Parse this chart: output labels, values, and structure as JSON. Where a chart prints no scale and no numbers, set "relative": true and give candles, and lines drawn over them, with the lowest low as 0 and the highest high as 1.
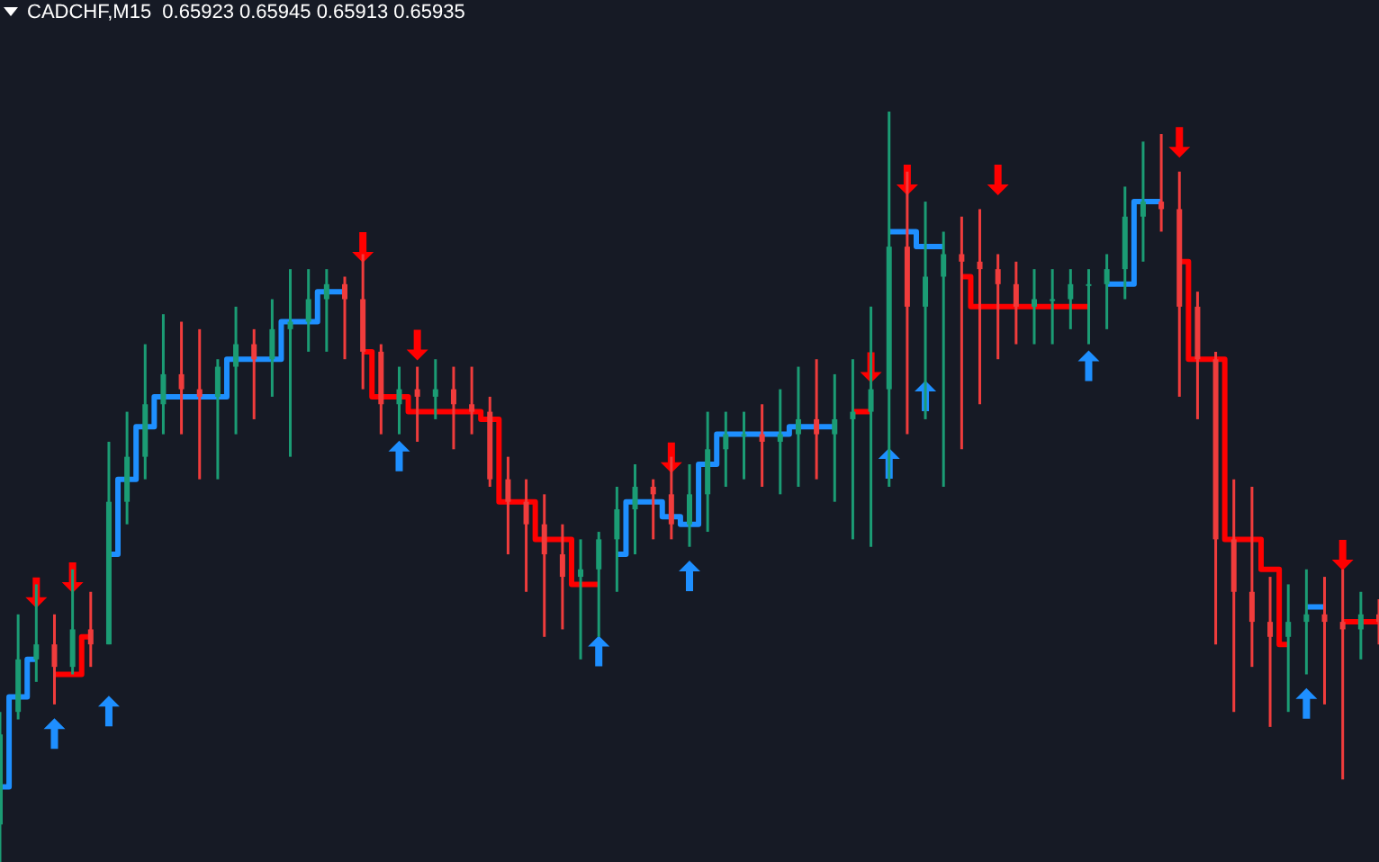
{
  "chart_data": {
    "type": "candlestick",
    "title": "CADCHF,M15  0.65923 0.65945 0.65913 0.65935",
    "relative": true,
    "legend": false,
    "grid": false,
    "tick_labels": false,
    "categories": [
      null,
      null,
      null,
      null,
      null,
      null,
      null,
      null,
      null,
      null,
      null,
      null,
      null,
      null,
      null,
      null,
      null,
      null,
      null,
      null,
      null,
      null,
      null,
      null,
      null,
      null,
      null,
      null,
      null,
      null,
      null,
      null,
      null,
      null,
      null,
      null,
      null,
      null,
      null,
      null,
      null,
      null,
      null,
      null,
      null,
      null,
      null,
      null,
      null,
      null,
      null,
      null,
      null,
      null,
      null,
      null,
      null,
      null,
      null,
      null,
      null,
      null,
      null,
      null,
      null,
      null,
      null,
      null,
      null,
      null,
      null,
      null,
      null,
      null,
      null,
      null,
      null
    ],
    "series": [
      {
        "type": "candlestick",
        "ohlc": [
          [
            0.05,
            0.2,
            0,
            0.17
          ],
          [
            0.2,
            0.33,
            0.19,
            0.27
          ],
          [
            0.27,
            0.37,
            0.24,
            0.29
          ],
          [
            0.29,
            0.33,
            0.21,
            0.26
          ],
          [
            0.26,
            0.39,
            0.25,
            0.31
          ],
          [
            0.31,
            0.36,
            0.26,
            0.29
          ],
          [
            0.29,
            0.56,
            0.29,
            0.48
          ],
          [
            0.48,
            0.6,
            0.45,
            0.54
          ],
          [
            0.54,
            0.69,
            0.51,
            0.61
          ],
          [
            0.61,
            0.73,
            0.57,
            0.65
          ],
          [
            0.65,
            0.72,
            0.57,
            0.63
          ],
          [
            0.63,
            0.71,
            0.51,
            0.62
          ],
          [
            0.62,
            0.67,
            0.51,
            0.66
          ],
          [
            0.66,
            0.74,
            0.57,
            0.69
          ],
          [
            0.69,
            0.71,
            0.59,
            0.67
          ],
          [
            0.67,
            0.75,
            0.62,
            0.71
          ],
          [
            0.71,
            0.79,
            0.54,
            0.72
          ],
          [
            0.72,
            0.79,
            0.68,
            0.75
          ],
          [
            0.75,
            0.79,
            0.68,
            0.77
          ],
          [
            0.77,
            0.78,
            0.67,
            0.75
          ],
          [
            0.75,
            0.81,
            0.63,
            0.68
          ],
          [
            0.68,
            0.69,
            0.57,
            0.61
          ],
          [
            0.61,
            0.66,
            0.57,
            0.63
          ],
          [
            0.63,
            0.66,
            0.56,
            0.62
          ],
          [
            0.62,
            0.67,
            0.59,
            0.63
          ],
          [
            0.63,
            0.66,
            0.55,
            0.61
          ],
          [
            0.61,
            0.66,
            0.57,
            0.6
          ],
          [
            0.6,
            0.62,
            0.5,
            0.51
          ],
          [
            0.51,
            0.54,
            0.41,
            0.48
          ],
          [
            0.48,
            0.51,
            0.36,
            0.45
          ],
          [
            0.45,
            0.49,
            0.3,
            0.41
          ],
          [
            0.41,
            0.45,
            0.31,
            0.38
          ],
          [
            0.38,
            0.43,
            0.27,
            0.39
          ],
          [
            0.39,
            0.44,
            0.3,
            0.43
          ],
          [
            0.43,
            0.5,
            0.36,
            0.47
          ],
          [
            0.47,
            0.53,
            0.41,
            0.5
          ],
          [
            0.5,
            0.51,
            0.43,
            0.49
          ],
          [
            0.49,
            0.54,
            0.43,
            0.45
          ],
          [
            0.45,
            0.53,
            0.42,
            0.49
          ],
          [
            0.49,
            0.6,
            0.44,
            0.55
          ],
          [
            0.55,
            0.6,
            0.5,
            0.57
          ],
          [
            0.57,
            0.6,
            0.51,
            0.57
          ],
          [
            0.57,
            0.61,
            0.5,
            0.56
          ],
          [
            0.56,
            0.63,
            0.49,
            0.57
          ],
          [
            0.57,
            0.66,
            0.5,
            0.59
          ],
          [
            0.59,
            0.67,
            0.51,
            0.57
          ],
          [
            0.57,
            0.65,
            0.48,
            0.59
          ],
          [
            0.59,
            0.67,
            0.43,
            0.6
          ],
          [
            0.6,
            0.74,
            0.42,
            0.63
          ],
          [
            0.63,
            1,
            0.5,
            0.82
          ],
          [
            0.82,
            0.92,
            0.57,
            0.74
          ],
          [
            0.74,
            0.88,
            0.59,
            0.78
          ],
          [
            0.78,
            0.84,
            0.5,
            0.81
          ],
          [
            0.81,
            0.86,
            0.55,
            0.8
          ],
          [
            0.8,
            0.87,
            0.61,
            0.79
          ],
          [
            0.79,
            0.81,
            0.67,
            0.77
          ],
          [
            0.77,
            0.8,
            0.69,
            0.74
          ],
          [
            0.74,
            0.79,
            0.69,
            0.75
          ],
          [
            0.75,
            0.79,
            0.69,
            0.75
          ],
          [
            0.75,
            0.79,
            0.71,
            0.77
          ],
          [
            0.77,
            0.79,
            0.69,
            0.77
          ],
          [
            0.77,
            0.81,
            0.71,
            0.79
          ],
          [
            0.79,
            0.9,
            0.75,
            0.86
          ],
          [
            0.86,
            0.96,
            0.8,
            0.88
          ],
          [
            0.88,
            0.97,
            0.84,
            0.87
          ],
          [
            0.87,
            0.92,
            0.62,
            0.74
          ],
          [
            0.74,
            0.76,
            0.59,
            0.67
          ],
          [
            0.67,
            0.68,
            0.29,
            0.43
          ],
          [
            0.43,
            0.51,
            0.2,
            0.36
          ],
          [
            0.36,
            0.5,
            0.26,
            0.32
          ],
          [
            0.32,
            0.38,
            0.18,
            0.3
          ],
          [
            0.3,
            0.37,
            0.2,
            0.32
          ],
          [
            0.32,
            0.39,
            0.25,
            0.33
          ],
          [
            0.33,
            0.38,
            0.21,
            0.32
          ],
          [
            0.32,
            0.39,
            0.11,
            0.31
          ],
          [
            0.31,
            0.36,
            0.27,
            0.33
          ],
          [
            0.33,
            0.35,
            0.29,
            0.32
          ]
        ],
        "colors": [
          "#1b9c74",
          "#1b9c74",
          "#1b9c74",
          "#f03c3c",
          "#1b9c74",
          "#f03c3c",
          "#1b9c74",
          "#1b9c74",
          "#1b9c74",
          "#1b9c74",
          "#f03c3c",
          "#f03c3c",
          "#1b9c74",
          "#1b9c74",
          "#f03c3c",
          "#1b9c74",
          "#1b9c74",
          "#1b9c74",
          "#1b9c74",
          "#f03c3c",
          "#f03c3c",
          "#f03c3c",
          "#1b9c74",
          "#f03c3c",
          "#1b9c74",
          "#f03c3c",
          "#f03c3c",
          "#f03c3c",
          "#f03c3c",
          "#f03c3c",
          "#f03c3c",
          "#f03c3c",
          "#1b9c74",
          "#1b9c74",
          "#1b9c74",
          "#1b9c74",
          "#f03c3c",
          "#f03c3c",
          "#1b9c74",
          "#1b9c74",
          "#1b9c74",
          "#1b9c74",
          "#f03c3c",
          "#1b9c74",
          "#1b9c74",
          "#f03c3c",
          "#1b9c74",
          "#1b9c74",
          "#1b9c74",
          "#1b9c74",
          "#f03c3c",
          "#1b9c74",
          "#1b9c74",
          "#f03c3c",
          "#f03c3c",
          "#f03c3c",
          "#f03c3c",
          "#1b9c74",
          "#1b9c74",
          "#1b9c74",
          "#1b9c74",
          "#1b9c74",
          "#1b9c74",
          "#1b9c74",
          "#f03c3c",
          "#f03c3c",
          "#f03c3c",
          "#f03c3c",
          "#f03c3c",
          "#f03c3c",
          "#f03c3c",
          "#1b9c74",
          "#1b9c74",
          "#f03c3c",
          "#f03c3c",
          "#1b9c74",
          "#f03c3c"
        ]
      },
      {
        "type": "step",
        "color": "#1e8fff",
        "values": [
          0.1,
          0.22,
          0.27,
          null,
          null,
          null,
          0.41,
          0.51,
          0.58,
          0.62,
          0.62,
          0.62,
          0.62,
          0.67,
          0.67,
          0.67,
          0.72,
          0.72,
          0.76,
          0.76,
          null,
          null,
          null,
          null,
          null,
          null,
          null,
          null,
          null,
          null,
          null,
          null,
          null,
          null,
          0.41,
          0.48,
          0.48,
          0.46,
          0.45,
          0.53,
          0.57,
          0.57,
          0.57,
          0.57,
          0.58,
          0.58,
          0.58,
          null,
          null,
          0.84,
          0.84,
          0.82,
          0.82,
          null,
          null,
          null,
          null,
          null,
          null,
          null,
          null,
          0.77,
          0.77,
          0.88,
          0.88,
          null,
          null,
          null,
          null,
          null,
          null,
          null,
          0.34,
          0.34,
          null,
          null,
          null
        ]
      },
      {
        "type": "step",
        "color": "#ff0000",
        "values": [
          null,
          null,
          null,
          0.25,
          0.25,
          0.3,
          null,
          null,
          null,
          null,
          null,
          null,
          null,
          null,
          null,
          null,
          null,
          null,
          null,
          null,
          0.68,
          0.62,
          0.62,
          0.6,
          0.6,
          0.6,
          0.6,
          0.59,
          0.48,
          0.48,
          0.43,
          0.43,
          0.37,
          0.37,
          null,
          null,
          null,
          null,
          null,
          null,
          null,
          null,
          null,
          null,
          null,
          null,
          null,
          0.6,
          0.6,
          null,
          null,
          null,
          null,
          0.78,
          0.74,
          0.74,
          0.74,
          0.74,
          0.74,
          0.74,
          0.74,
          null,
          null,
          null,
          null,
          0.8,
          0.67,
          0.67,
          0.43,
          0.43,
          0.39,
          0.29,
          null,
          null,
          0.32,
          0.32,
          0.32
        ]
      },
      {
        "type": "scatter",
        "marker": "triangle",
        "color": "#1e8fff",
        "values": [
          null,
          null,
          null,
          0.17,
          null,
          null,
          0.2,
          null,
          null,
          null,
          null,
          null,
          null,
          null,
          null,
          null,
          null,
          null,
          null,
          null,
          null,
          null,
          0.54,
          null,
          null,
          null,
          null,
          null,
          null,
          null,
          null,
          null,
          null,
          0.28,
          null,
          null,
          null,
          null,
          0.38,
          null,
          null,
          null,
          null,
          null,
          null,
          null,
          null,
          null,
          null,
          0.53,
          null,
          0.62,
          null,
          null,
          null,
          null,
          null,
          null,
          null,
          null,
          0.66,
          null,
          null,
          null,
          null,
          null,
          null,
          null,
          null,
          null,
          null,
          null,
          0.21,
          null,
          null,
          null,
          null
        ]
      },
      {
        "type": "scatter",
        "marker": "triangle",
        "color": "#ff0000",
        "values": [
          null,
          null,
          0.36,
          null,
          0.38,
          null,
          null,
          null,
          null,
          null,
          null,
          null,
          null,
          null,
          null,
          null,
          null,
          null,
          null,
          null,
          0.82,
          null,
          null,
          0.69,
          null,
          null,
          null,
          null,
          null,
          null,
          null,
          null,
          null,
          null,
          null,
          null,
          null,
          0.54,
          null,
          null,
          null,
          null,
          null,
          null,
          null,
          null,
          null,
          null,
          0.66,
          null,
          0.91,
          null,
          null,
          null,
          null,
          0.91,
          null,
          null,
          null,
          null,
          null,
          null,
          null,
          null,
          null,
          0.96,
          null,
          null,
          null,
          null,
          null,
          null,
          null,
          null,
          0.41,
          null,
          null
        ]
      }
    ]
  }
}
